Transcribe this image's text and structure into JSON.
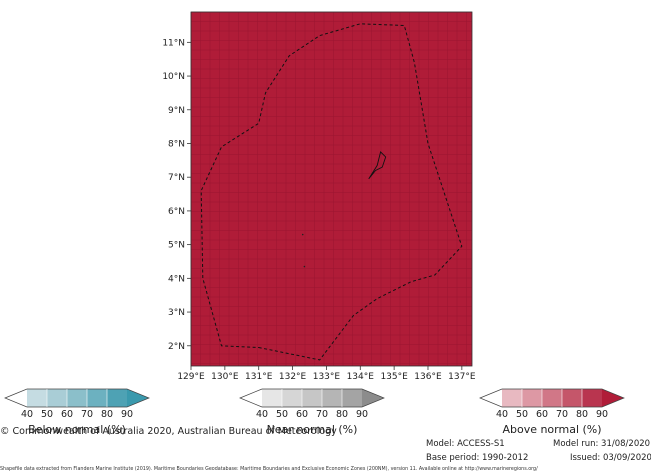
{
  "map": {
    "fill_color": "#b01c38",
    "lon_ticks": [
      "129°E",
      "130°E",
      "131°E",
      "132°E",
      "133°E",
      "134°E",
      "135°E",
      "136°E",
      "137°E"
    ],
    "lat_ticks": [
      "2°N",
      "3°N",
      "4°N",
      "5°N",
      "6°N",
      "7°N",
      "8°N",
      "9°N",
      "10°N",
      "11°N"
    ],
    "lon_range": [
      129.0,
      137.3
    ],
    "lat_range": [
      1.4,
      11.9
    ],
    "eez_boundary": [
      [
        131.0,
        1.95
      ],
      [
        132.8,
        1.58
      ],
      [
        133.8,
        2.9
      ],
      [
        134.5,
        3.4
      ],
      [
        135.5,
        3.9
      ],
      [
        136.2,
        4.1
      ],
      [
        137.0,
        4.95
      ],
      [
        136.0,
        8.0
      ],
      [
        135.6,
        10.4
      ],
      [
        135.3,
        11.5
      ],
      [
        134.0,
        11.55
      ],
      [
        132.8,
        11.2
      ],
      [
        131.9,
        10.6
      ],
      [
        131.2,
        9.5
      ],
      [
        131.0,
        8.6
      ],
      [
        129.9,
        7.9
      ],
      [
        129.3,
        6.6
      ],
      [
        129.35,
        4.0
      ],
      [
        129.9,
        2.0
      ],
      [
        131.0,
        1.95
      ]
    ]
  },
  "colorbars": [
    {
      "id": "below",
      "title": "Below normal (%)",
      "ticks": [
        "40",
        "50",
        "60",
        "70",
        "80",
        "90"
      ],
      "colors": [
        "#c5dce2",
        "#a9cdd6",
        "#8bbfca",
        "#6cb1c0",
        "#4ea2b4"
      ],
      "max_color": "#3a99ad"
    },
    {
      "id": "near",
      "title": "Near normal (%)",
      "ticks": [
        "40",
        "50",
        "60",
        "70",
        "80",
        "90"
      ],
      "colors": [
        "#e6e6e6",
        "#d6d6d6",
        "#c6c6c6",
        "#b5b5b5",
        "#a4a4a4"
      ],
      "max_color": "#8c8c8c"
    },
    {
      "id": "above",
      "title": "Above normal (%)",
      "ticks": [
        "40",
        "50",
        "60",
        "70",
        "80",
        "90"
      ],
      "colors": [
        "#e8b9c1",
        "#dd98a4",
        "#d17787",
        "#c5566a",
        "#b9354f"
      ],
      "max_color": "#b01c38"
    }
  ],
  "footer": {
    "copyright": "© Commonwealth of Australia 2020, Australian Bureau of Meteorology",
    "model": "Model: ACCESS-S1",
    "model_run": "Model run: 31/08/2020",
    "base_period": "Base period: 1990-2012",
    "issued": "Issued: 03/09/2020",
    "shapefile_credit": "Shapefile data extracted from Flanders Marine Institute (2019). Maritime Boundaries Geodatabase: Maritime Boundaries and Exclusive Economic Zones (200NM), version 11. Available online at http://www.marineregions.org/"
  }
}
